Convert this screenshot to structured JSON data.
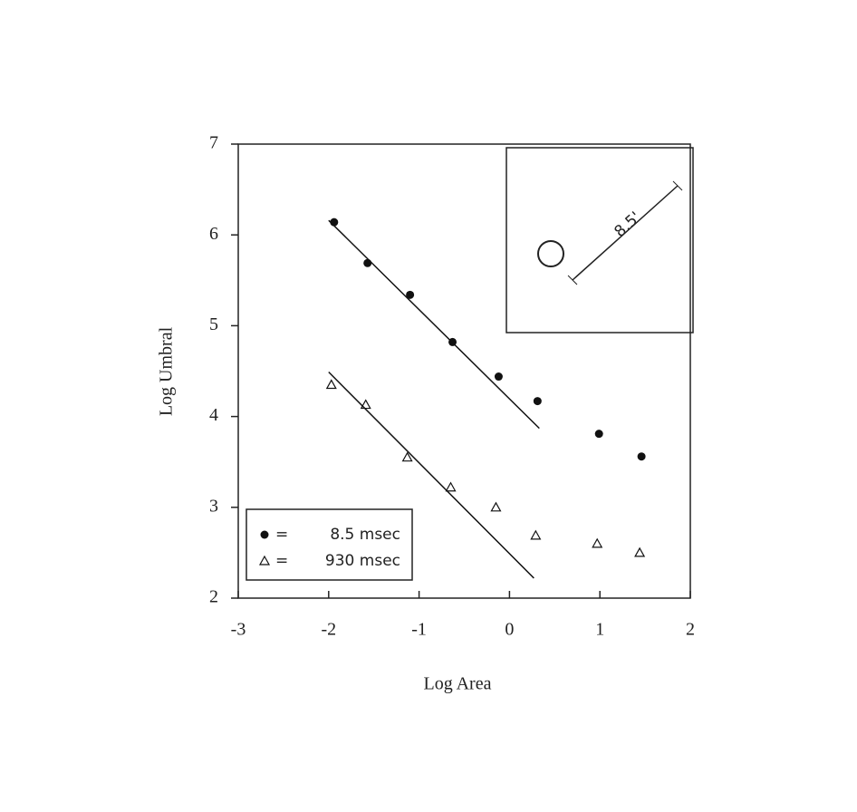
{
  "chart_data": {
    "type": "scatter",
    "x_label": "Log Area",
    "y_label": "Log Umbral",
    "xlim": [
      -3,
      2
    ],
    "ylim": [
      2,
      7
    ],
    "xticks": [
      -3,
      -2,
      -1,
      0,
      1,
      2
    ],
    "yticks": [
      2,
      3,
      4,
      5,
      6,
      7
    ],
    "legend": "lower left",
    "inset_label": "8.5'",
    "series": [
      {
        "name": "8.5 msec",
        "color": "#111",
        "marker": "circle",
        "x": [
          -1.94,
          -1.57,
          -1.1,
          -0.63,
          -0.12,
          0.31,
          0.99,
          1.46
        ],
        "values": [
          6.14,
          5.69,
          5.34,
          4.82,
          4.44,
          4.17,
          3.81,
          3.56
        ],
        "fit": {
          "x": [
            -2.0,
            0.33
          ],
          "y": [
            6.16,
            3.87
          ]
        }
      },
      {
        "name": "930 msec",
        "color": "#111",
        "marker": "triangle",
        "x": [
          -1.97,
          -1.59,
          -1.13,
          -0.65,
          -0.15,
          0.29,
          0.97,
          1.44
        ],
        "values": [
          4.35,
          4.13,
          3.55,
          3.22,
          3.0,
          2.69,
          2.6,
          2.5
        ],
        "fit": {
          "x": [
            -2.0,
            0.27
          ],
          "y": [
            4.49,
            2.22
          ]
        }
      }
    ]
  }
}
